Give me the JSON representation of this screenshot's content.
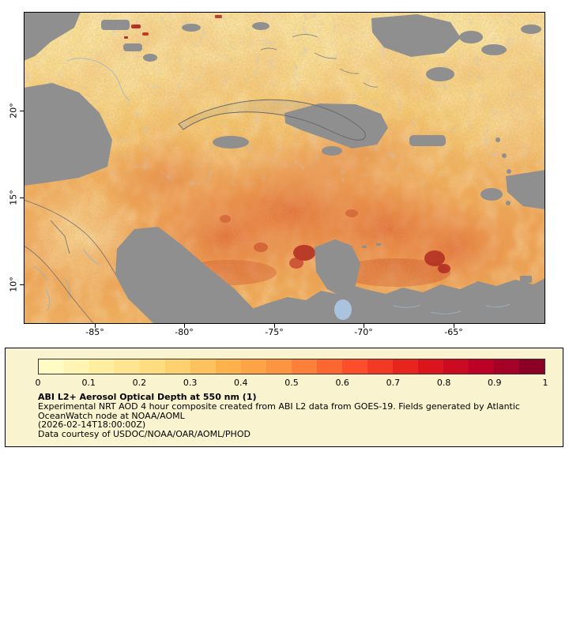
{
  "map": {
    "lat_ticks": [
      "20°",
      "15°",
      "10°"
    ],
    "lon_ticks": [
      "-85°",
      "-80°",
      "-75°",
      "-70°",
      "-65°"
    ]
  },
  "legend": {
    "ticks": [
      "0",
      "0.1",
      "0.2",
      "0.3",
      "0.4",
      "0.5",
      "0.6",
      "0.7",
      "0.8",
      "0.9",
      "1"
    ],
    "title": "ABI L2+ Aerosol Optical Depth at 550 nm (1)",
    "description_line1": "Experimental NRT AOD 4 hour composite created from ABI L2 data from GOES-19. Fields generated by Atlantic",
    "description_line2": "OceanWatch node at NOAA/AOML",
    "timestamp": "(2026-02-14T18:00:00Z)",
    "courtesy": "Data courtesy of USDOC/NOAA/OAR/AOML/PHOD",
    "colorbar_colors": [
      "#FFFBC3",
      "#FFF4B2",
      "#FFEDA0",
      "#FFE58F",
      "#FEDD7E",
      "#FED16E",
      "#FEC25D",
      "#FEB24C",
      "#FEA346",
      "#FD943F",
      "#FD8038",
      "#FC6731",
      "#FC4E2A",
      "#F23924",
      "#E8241F",
      "#DB151E",
      "#CC0A22",
      "#BD0026",
      "#A50026",
      "#8C0026"
    ]
  },
  "colors": {
    "land_gray": "#8F8F8F",
    "legend_bg": "#FAF3CF",
    "river_blue": "#8FB3CE",
    "aod_low": "#F6E6A0",
    "aod_high": "#B02A20"
  },
  "chart_data": {
    "type": "heatmap",
    "title": "ABI L2+ Aerosol Optical Depth at 550 nm (1)",
    "x_ticks": [
      "-85°",
      "-80°",
      "-75°",
      "-70°",
      "-65°"
    ],
    "y_ticks": [
      "20°",
      "15°",
      "10°"
    ],
    "colorbar_range": [
      0,
      1
    ],
    "colorbar_tick_step": 0.1,
    "colorbar_tick_labels": [
      "0",
      "0.1",
      "0.2",
      "0.3",
      "0.4",
      "0.5",
      "0.6",
      "0.7",
      "0.8",
      "0.9",
      "1"
    ]
  }
}
